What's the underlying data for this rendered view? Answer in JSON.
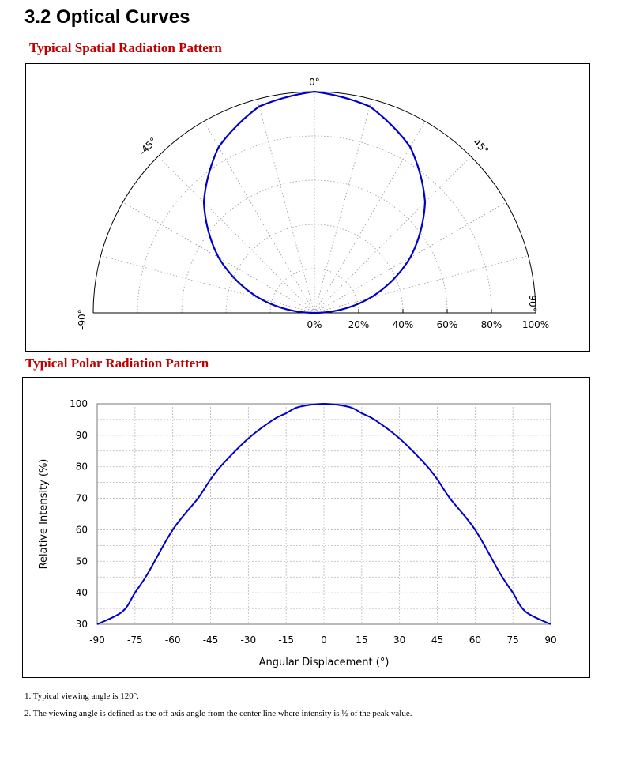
{
  "page": {
    "section_title": "3.2 Optical Curves",
    "spatial_title": "Typical Spatial Radiation Pattern",
    "polar_title": "Typical Polar Radiation Pattern",
    "notes": [
      "1. Typical viewing angle is 120°.",
      "2. The viewing angle is defined as the off axis angle from the center line where intensity is ½ of the peak value."
    ]
  },
  "chart_data": [
    {
      "type": "polar",
      "title": "Typical Spatial Radiation Pattern",
      "angle_labels": [
        "0°",
        "45°",
        "-45°",
        "90°",
        "-90°"
      ],
      "radius_labels": [
        "0%",
        "20%",
        "40%",
        "60%",
        "80%",
        "100%"
      ],
      "angle_range": [
        -90,
        90
      ],
      "radius_range": [
        0,
        100
      ],
      "series": [
        {
          "angles": [
            -90,
            -75,
            -60,
            -45,
            -30,
            -15,
            0,
            15,
            30,
            45,
            60,
            75,
            90
          ],
          "values": [
            0,
            25.9,
            50,
            70.7,
            86.6,
            96.6,
            100,
            96.6,
            86.6,
            70.7,
            50,
            25.9,
            0
          ],
          "color": "#0000cc"
        }
      ],
      "grid": true
    },
    {
      "type": "line",
      "title": "Typical Polar Radiation Pattern",
      "xlabel": "Angular Displacement (°)",
      "ylabel": "Relative Intensity (%)",
      "x_ticks": [
        "-90",
        "-75",
        "-60",
        "-45",
        "-30",
        "-15",
        "0",
        "15",
        "30",
        "45",
        "60",
        "75",
        "90"
      ],
      "y_ticks": [
        "30",
        "40",
        "50",
        "60",
        "70",
        "80",
        "90",
        "100"
      ],
      "xlim": [
        -90,
        90
      ],
      "ylim": [
        30,
        100
      ],
      "series": [
        {
          "x": [
            -90,
            -80,
            -75,
            -70,
            -60,
            -50,
            -45,
            -40,
            -30,
            -20,
            -15,
            -10,
            0,
            10,
            15,
            20,
            30,
            40,
            45,
            50,
            60,
            70,
            75,
            80,
            90
          ],
          "y": [
            30,
            34,
            40,
            46,
            60,
            70,
            76,
            81,
            89,
            95,
            97,
            99,
            100,
            99,
            97,
            95,
            89,
            81,
            76,
            70,
            60,
            46,
            40,
            34,
            30
          ],
          "color": "#0000cc"
        }
      ],
      "grid": true
    }
  ]
}
